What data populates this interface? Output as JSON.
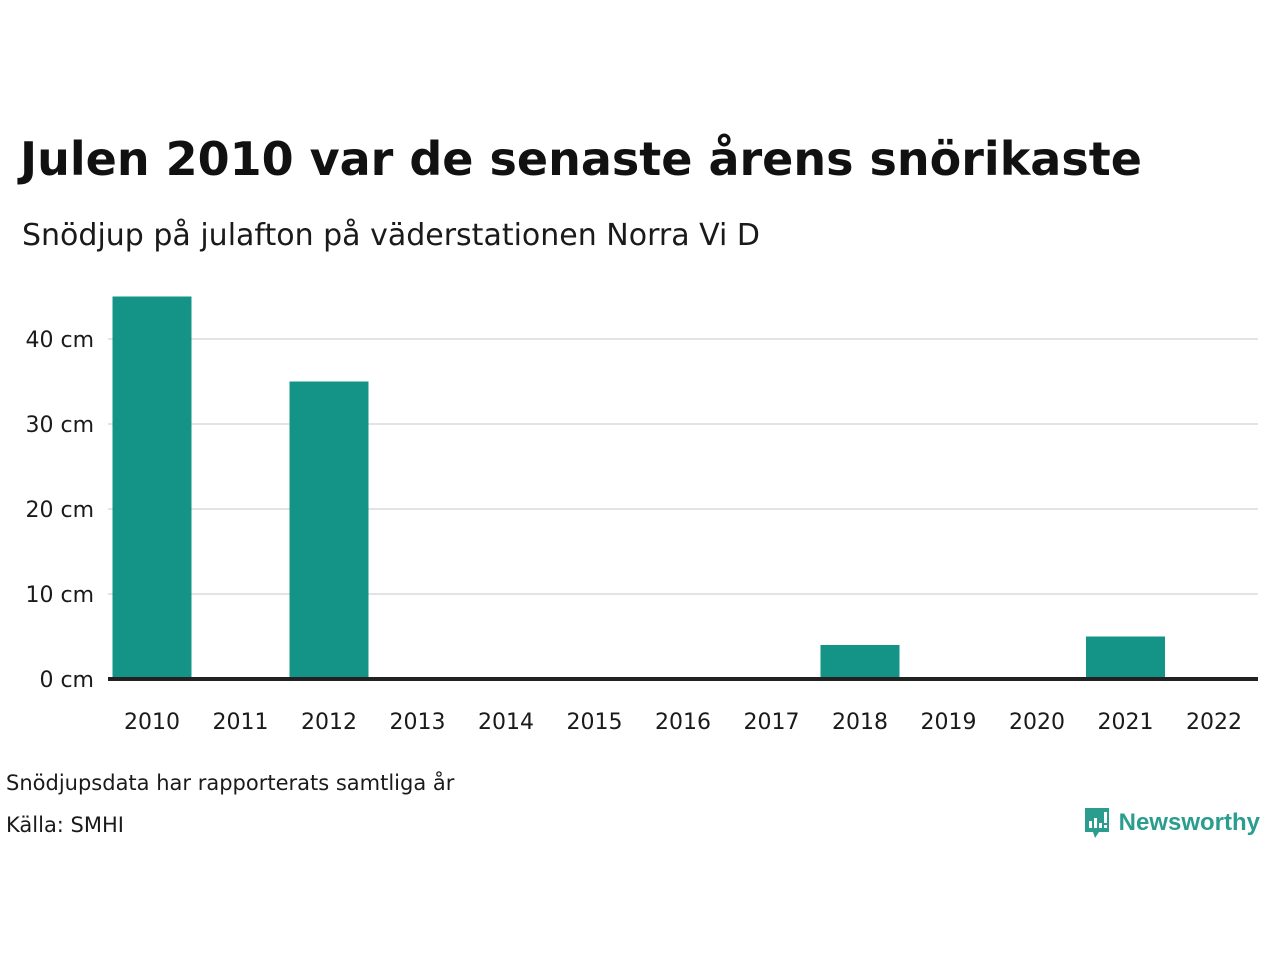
{
  "header": {
    "title": "Julen 2010 var de senaste årens snörikaste",
    "subtitle": "Snödjup på julafton på väderstationen Norra Vi D"
  },
  "footer": {
    "note": "Snödjupsdata har rapporterats samtliga år",
    "source": "Källa: SMHI",
    "brand": "Newsworthy",
    "brand_icon": "newsworthy-logo-icon"
  },
  "colors": {
    "bar": "#139487",
    "grid": "#e3e3e3",
    "baseline": "#222222",
    "brand": "#2a9d8f"
  },
  "chart_data": {
    "type": "bar",
    "title": "Julen 2010 var de senaste årens snörikaste",
    "subtitle": "Snödjup på julafton på väderstationen Norra Vi D",
    "xlabel": "",
    "ylabel": "",
    "categories": [
      "2010",
      "2011",
      "2012",
      "2013",
      "2014",
      "2015",
      "2016",
      "2017",
      "2018",
      "2019",
      "2020",
      "2021",
      "2022"
    ],
    "values": [
      45,
      0,
      35,
      0,
      0,
      0,
      0,
      0,
      4,
      0,
      0,
      5,
      0
    ],
    "ylim": [
      0,
      48
    ],
    "yticks": [
      0,
      10,
      20,
      30,
      40
    ],
    "ytick_labels": [
      "0 cm",
      "10 cm",
      "20 cm",
      "30 cm",
      "40 cm"
    ],
    "grid": true,
    "legend": "none"
  }
}
